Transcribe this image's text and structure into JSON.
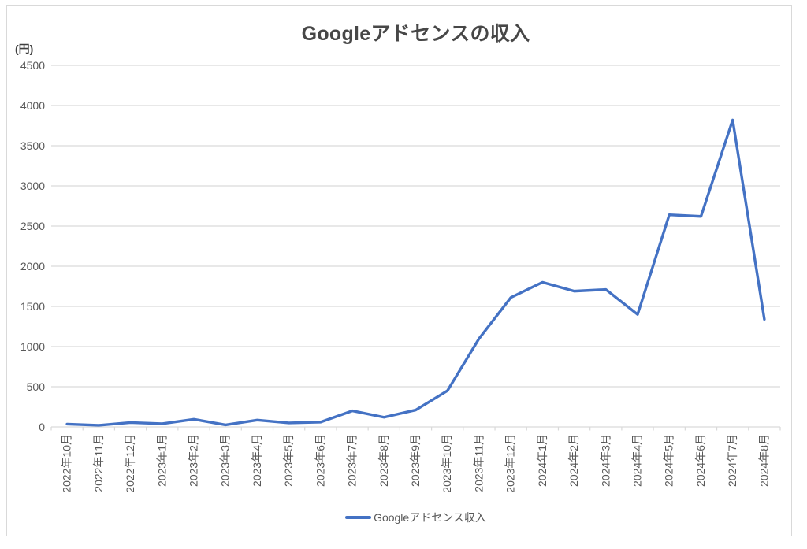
{
  "chart_data": {
    "type": "line",
    "title": "Googleアドセンスの収入",
    "y_axis_unit": "(円)",
    "xlabel": "",
    "ylabel": "",
    "ylim": [
      0,
      4500
    ],
    "ytick_step": 500,
    "grid": true,
    "legend_position": "bottom-center",
    "categories": [
      "2022年10月",
      "2022年11月",
      "2022年12月",
      "2023年1月",
      "2023年2月",
      "2023年3月",
      "2023年4月",
      "2023年5月",
      "2023年6月",
      "2023年7月",
      "2023年8月",
      "2023年9月",
      "2023年10月",
      "2023年11月",
      "2023年12月",
      "2024年1月",
      "2024年2月",
      "2024年3月",
      "2024年4月",
      "2024年5月",
      "2024年6月",
      "2024年7月",
      "2024年8月"
    ],
    "series": [
      {
        "name": "Googleアドセンス収入",
        "values": [
          35,
          20,
          55,
          40,
          95,
          25,
          85,
          50,
          60,
          200,
          120,
          210,
          450,
          1100,
          1610,
          1800,
          1690,
          1710,
          1400,
          2640,
          2620,
          3820,
          1340
        ]
      }
    ],
    "colors": {
      "line": "#4472C4",
      "grid": "#D9D9D9",
      "axis_text": "#595959",
      "title_text": "#474747",
      "frame_border": "#D9D9D9"
    }
  }
}
